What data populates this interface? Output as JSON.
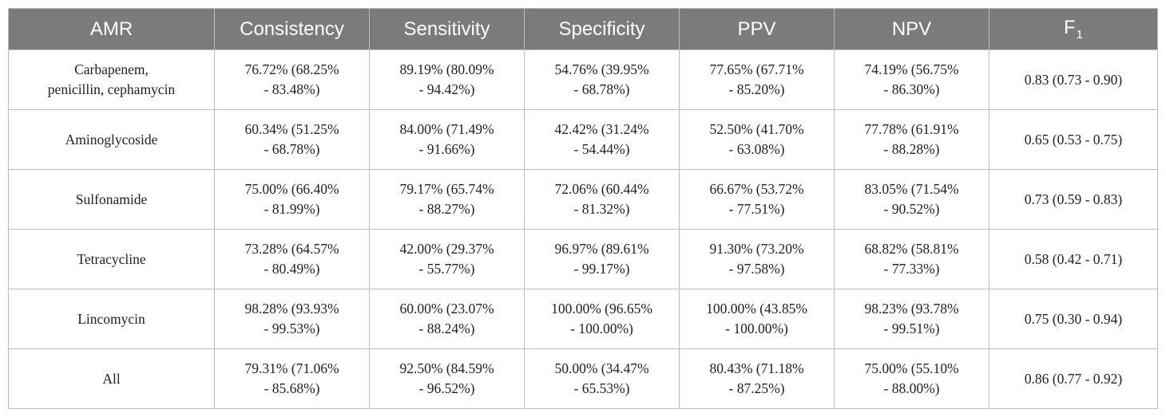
{
  "table": {
    "headers": [
      {
        "main": "AMR",
        "sub": ""
      },
      {
        "main": "Consistency",
        "sub": ""
      },
      {
        "main": "Sensitivity",
        "sub": ""
      },
      {
        "main": "Specificity",
        "sub": ""
      },
      {
        "main": "PPV",
        "sub": ""
      },
      {
        "main": "NPV",
        "sub": ""
      },
      {
        "main": "F",
        "sub": "1"
      }
    ],
    "rows": [
      {
        "amr": [
          "Carbapenem,",
          "penicillin, cephamycin"
        ],
        "consistency": [
          "76.72% (68.25%",
          "- 83.48%)"
        ],
        "sensitivity": [
          "89.19% (80.09%",
          "- 94.42%)"
        ],
        "specificity": [
          "54.76% (39.95%",
          "- 68.78%)"
        ],
        "ppv": [
          "77.65% (67.71%",
          "- 85.20%)"
        ],
        "npv": [
          "74.19% (56.75%",
          "- 86.30%)"
        ],
        "f1": [
          "0.83 (0.73 - 0.90)"
        ]
      },
      {
        "amr": [
          "Aminoglycoside"
        ],
        "consistency": [
          "60.34% (51.25%",
          "- 68.78%)"
        ],
        "sensitivity": [
          "84.00% (71.49%",
          "- 91.66%)"
        ],
        "specificity": [
          "42.42% (31.24%",
          "- 54.44%)"
        ],
        "ppv": [
          "52.50% (41.70%",
          "- 63.08%)"
        ],
        "npv": [
          "77.78% (61.91%",
          "- 88.28%)"
        ],
        "f1": [
          "0.65 (0.53 - 0.75)"
        ]
      },
      {
        "amr": [
          "Sulfonamide"
        ],
        "consistency": [
          "75.00% (66.40%",
          "- 81.99%)"
        ],
        "sensitivity": [
          "79.17% (65.74%",
          "- 88.27%)"
        ],
        "specificity": [
          "72.06% (60.44%",
          "- 81.32%)"
        ],
        "ppv": [
          "66.67% (53.72%",
          "- 77.51%)"
        ],
        "npv": [
          "83.05% (71.54%",
          "- 90.52%)"
        ],
        "f1": [
          "0.73 (0.59 - 0.83)"
        ]
      },
      {
        "amr": [
          "Tetracycline"
        ],
        "consistency": [
          "73.28% (64.57%",
          "- 80.49%)"
        ],
        "sensitivity": [
          "42.00% (29.37%",
          "- 55.77%)"
        ],
        "specificity": [
          "96.97% (89.61%",
          "- 99.17%)"
        ],
        "ppv": [
          "91.30% (73.20%",
          "- 97.58%)"
        ],
        "npv": [
          "68.82% (58.81%",
          "- 77.33%)"
        ],
        "f1": [
          "0.58 (0.42 - 0.71)"
        ]
      },
      {
        "amr": [
          "Lincomycin"
        ],
        "consistency": [
          "98.28% (93.93%",
          "- 99.53%)"
        ],
        "sensitivity": [
          "60.00% (23.07%",
          "- 88.24%)"
        ],
        "specificity": [
          "100.00% (96.65%",
          "- 100.00%)"
        ],
        "ppv": [
          "100.00% (43.85%",
          "- 100.00%)"
        ],
        "npv": [
          "98.23% (93.78%",
          "- 99.51%)"
        ],
        "f1": [
          "0.75 (0.30 - 0.94)"
        ]
      },
      {
        "amr": [
          "All"
        ],
        "consistency": [
          "79.31% (71.06%",
          "- 85.68%)"
        ],
        "sensitivity": [
          "92.50% (84.59%",
          "- 96.52%)"
        ],
        "specificity": [
          "50.00% (34.47%",
          "- 65.53%)"
        ],
        "ppv": [
          "80.43% (71.18%",
          "- 87.25%)"
        ],
        "npv": [
          "75.00% (55.10%",
          "- 88.00%)"
        ],
        "f1": [
          "0.86 (0.77 - 0.92)"
        ]
      }
    ]
  },
  "colors": {
    "header_bg": "#7a7b7b",
    "header_text": "#ffffff",
    "grid": "#bdbdbd",
    "body_text": "#222222"
  }
}
